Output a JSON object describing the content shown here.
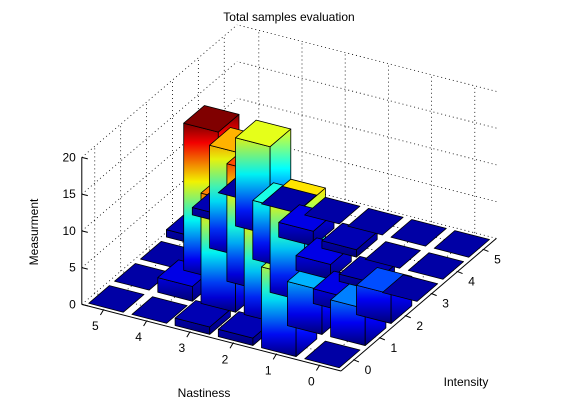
{
  "chart_data": {
    "type": "bar3d",
    "title": "Total samples evaluation",
    "xlabel": "Intensity",
    "ylabel": "Nastiness",
    "zlabel": "Measurment",
    "x_categories": [
      0,
      1,
      2,
      3,
      4,
      5
    ],
    "y_categories": [
      0,
      1,
      2,
      3,
      4,
      5
    ],
    "zlim": [
      0,
      20
    ],
    "z_ticks": [
      0,
      5,
      10,
      15,
      20
    ],
    "x_ticks": [
      0,
      1,
      2,
      3,
      4,
      5
    ],
    "y_ticks": [
      0,
      1,
      2,
      3,
      4,
      5
    ],
    "grid": true,
    "colormap": "jet",
    "bars": [
      {
        "intensity": 0,
        "nastiness": 0,
        "value": 0
      },
      {
        "intensity": 1,
        "nastiness": 0,
        "value": 5
      },
      {
        "intensity": 2,
        "nastiness": 0,
        "value": 4
      },
      {
        "intensity": 3,
        "nastiness": 0,
        "value": 0
      },
      {
        "intensity": 4,
        "nastiness": 0,
        "value": 0
      },
      {
        "intensity": 5,
        "nastiness": 0,
        "value": 0
      },
      {
        "intensity": 0,
        "nastiness": 1,
        "value": 11
      },
      {
        "intensity": 1,
        "nastiness": 1,
        "value": 6
      },
      {
        "intensity": 2,
        "nastiness": 1,
        "value": 2
      },
      {
        "intensity": 3,
        "nastiness": 1,
        "value": 1
      },
      {
        "intensity": 4,
        "nastiness": 1,
        "value": 0
      },
      {
        "intensity": 5,
        "nastiness": 1,
        "value": 0
      },
      {
        "intensity": 0,
        "nastiness": 2,
        "value": 1
      },
      {
        "intensity": 1,
        "nastiness": 2,
        "value": 13
      },
      {
        "intensity": 2,
        "nastiness": 2,
        "value": 13
      },
      {
        "intensity": 3,
        "nastiness": 2,
        "value": 2
      },
      {
        "intensity": 4,
        "nastiness": 2,
        "value": 1
      },
      {
        "intensity": 5,
        "nastiness": 2,
        "value": 0
      },
      {
        "intensity": 0,
        "nastiness": 3,
        "value": 1
      },
      {
        "intensity": 1,
        "nastiness": 3,
        "value": 15
      },
      {
        "intensity": 2,
        "nastiness": 3,
        "value": 16
      },
      {
        "intensity": 3,
        "nastiness": 3,
        "value": 8
      },
      {
        "intensity": 4,
        "nastiness": 3,
        "value": 2
      },
      {
        "intensity": 5,
        "nastiness": 3,
        "value": 0
      },
      {
        "intensity": 0,
        "nastiness": 4,
        "value": 0
      },
      {
        "intensity": 1,
        "nastiness": 4,
        "value": 2
      },
      {
        "intensity": 2,
        "nastiness": 4,
        "value": 20
      },
      {
        "intensity": 3,
        "nastiness": 4,
        "value": 14
      },
      {
        "intensity": 4,
        "nastiness": 4,
        "value": 12
      },
      {
        "intensity": 5,
        "nastiness": 4,
        "value": 0
      },
      {
        "intensity": 0,
        "nastiness": 5,
        "value": 0
      },
      {
        "intensity": 1,
        "nastiness": 5,
        "value": 0
      },
      {
        "intensity": 2,
        "nastiness": 5,
        "value": 0
      },
      {
        "intensity": 3,
        "nastiness": 5,
        "value": 1
      },
      {
        "intensity": 4,
        "nastiness": 5,
        "value": 1
      },
      {
        "intensity": 5,
        "nastiness": 5,
        "value": 0
      }
    ]
  }
}
